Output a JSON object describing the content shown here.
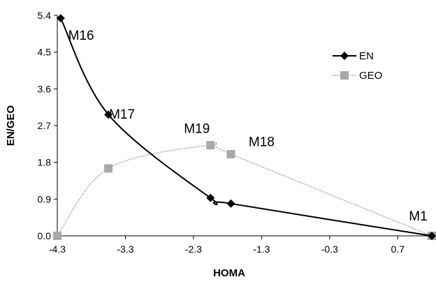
{
  "chart_data": {
    "type": "line",
    "title": "",
    "xlabel": "HOMA",
    "ylabel": "EN/GEO",
    "xlim": [
      -4.3,
      1.2
    ],
    "ylim": [
      0.0,
      5.4
    ],
    "xticks": [
      "-4.3",
      "-3.3",
      "-2.3",
      "-1.3",
      "-0.3",
      "0.7"
    ],
    "xtick_values": [
      -4.3,
      -3.3,
      -2.3,
      -1.3,
      -0.3,
      0.7
    ],
    "yticks": [
      "0.0",
      "0.9",
      "1.8",
      "2.7",
      "3.6",
      "4.5",
      "5.4"
    ],
    "ytick_values": [
      0.0,
      0.9,
      1.8,
      2.7,
      3.6,
      4.5,
      5.4
    ],
    "grid": false,
    "legend_position": "top-right",
    "series": [
      {
        "name": "EN",
        "color": "#000000",
        "marker": "diamond",
        "x": [
          -4.25,
          -3.55,
          -2.05,
          -1.75,
          1.2
        ],
        "y": [
          5.33,
          2.97,
          0.93,
          0.79,
          0.0
        ]
      },
      {
        "name": "GEO",
        "color": "#a8a8a8",
        "marker": "square",
        "x": [
          -4.3,
          -3.55,
          -2.05,
          -1.75,
          1.2
        ],
        "y": [
          0.0,
          1.65,
          2.22,
          2.0,
          0.0
        ]
      }
    ],
    "annotations": [
      {
        "text": "M16",
        "x": -3.95,
        "y": 4.8
      },
      {
        "text": "M17",
        "x": -3.35,
        "y": 2.87
      },
      {
        "text": "M19",
        "x": -2.25,
        "y": 2.52
      },
      {
        "text": "M18",
        "x": -1.3,
        "y": 2.2
      },
      {
        "text": "M1",
        "x": 1.0,
        "y": 0.38
      }
    ]
  }
}
